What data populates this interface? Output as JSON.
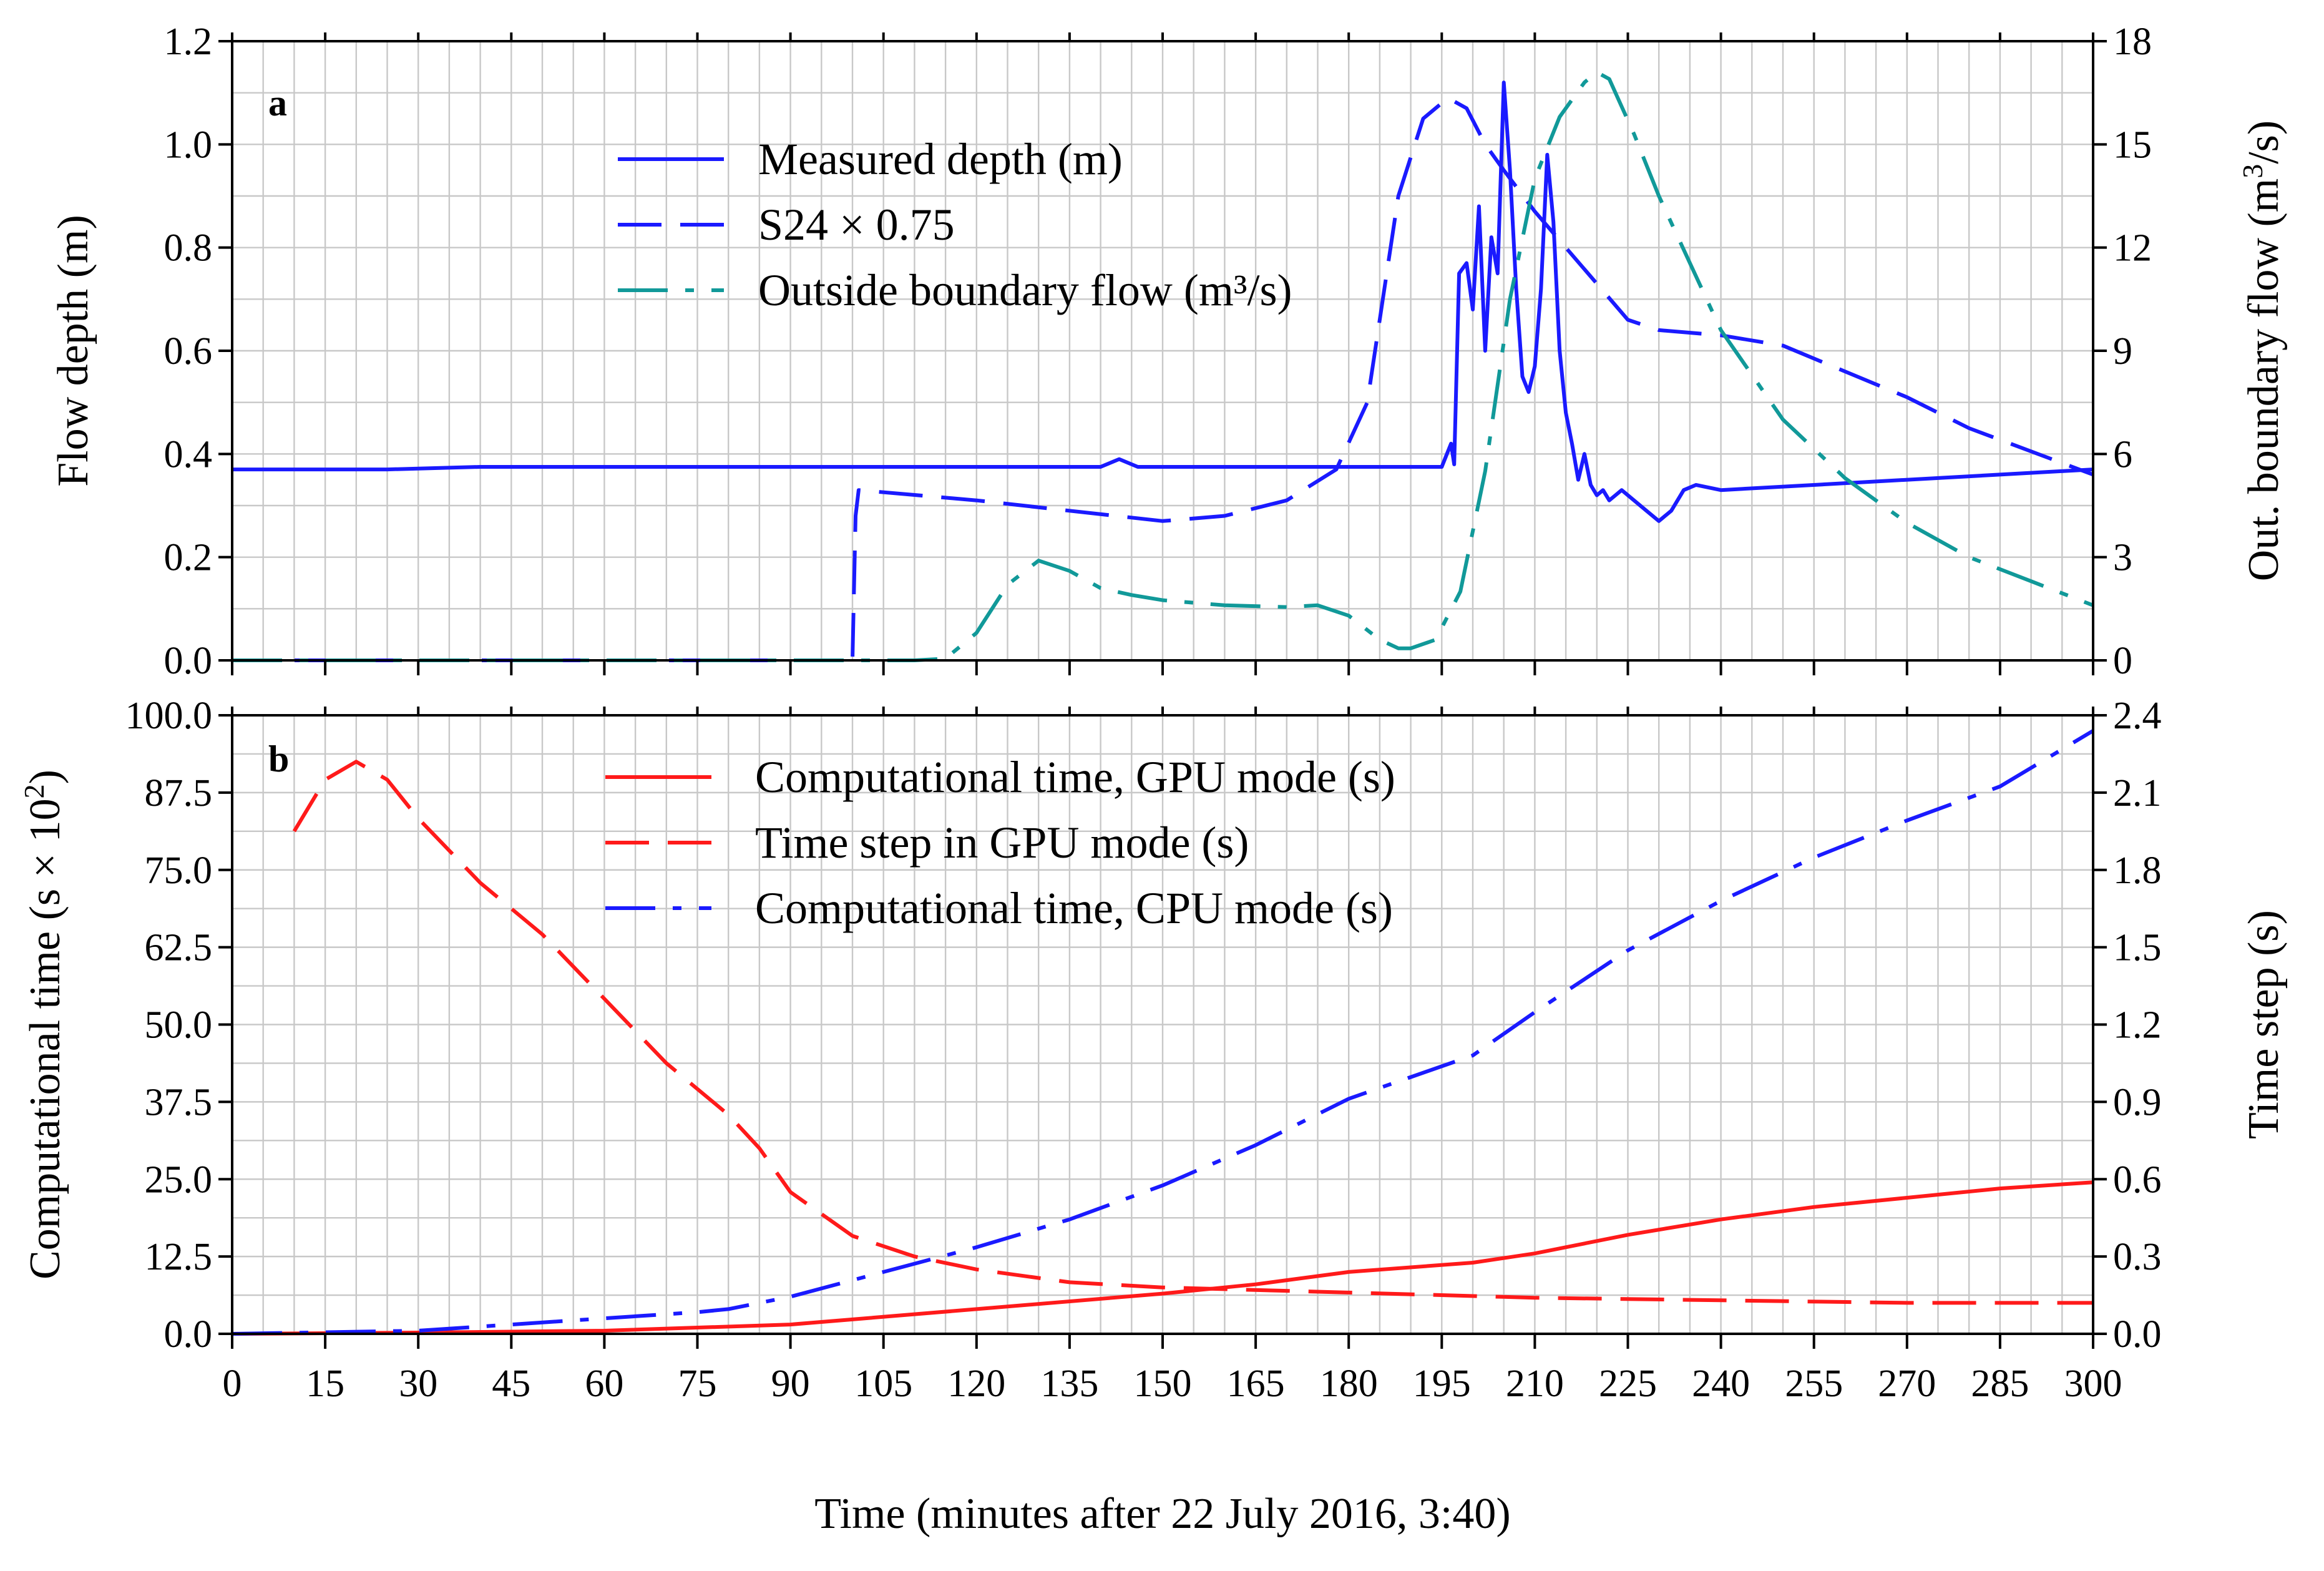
{
  "chart_data": {
    "shared_x": {
      "label": "Time (minutes after 22 July 2016, 3:40)",
      "range": [
        0,
        300
      ],
      "ticks": [
        0,
        15,
        30,
        45,
        60,
        75,
        90,
        105,
        120,
        135,
        150,
        165,
        180,
        195,
        210,
        225,
        240,
        255,
        270,
        285,
        300
      ]
    },
    "panels": [
      {
        "id": "a",
        "panel_label": "a",
        "type": "line",
        "y_left": {
          "label": "Flow depth (m)",
          "range": [
            0,
            1.2
          ],
          "ticks": [
            "0.0",
            "0.2",
            "0.4",
            "0.6",
            "0.8",
            "1.0",
            "1.2"
          ]
        },
        "y_right": {
          "label_main": "Out. boundary flow (m",
          "label_sup": "3",
          "label_tail": "/s)",
          "range": [
            0,
            18
          ],
          "ticks": [
            "0",
            "3",
            "6",
            "9",
            "12",
            "15",
            "18"
          ]
        },
        "series": [
          {
            "name": "Measured depth (m)",
            "axis": "left",
            "style": "solid",
            "color": "#1a1aff",
            "x": [
              0,
              25,
              40,
              100,
              140,
              143,
              146,
              195,
              196.5,
              197,
              197.8,
              199,
              200,
              201,
              202,
              203,
              204,
              205,
              206,
              207,
              208,
              209,
              210,
              211,
              212,
              213,
              214,
              215,
              216,
              217,
              218,
              219,
              220,
              221,
              222,
              223,
              224,
              228,
              230,
              232,
              234,
              236,
              240,
              300
            ],
            "y": [
              0.37,
              0.37,
              0.375,
              0.375,
              0.375,
              0.39,
              0.375,
              0.375,
              0.42,
              0.38,
              0.75,
              0.77,
              0.68,
              0.88,
              0.6,
              0.82,
              0.75,
              1.12,
              0.95,
              0.72,
              0.55,
              0.52,
              0.57,
              0.72,
              0.98,
              0.85,
              0.6,
              0.48,
              0.42,
              0.35,
              0.4,
              0.34,
              0.32,
              0.33,
              0.31,
              0.32,
              0.33,
              0.29,
              0.27,
              0.29,
              0.33,
              0.34,
              0.33,
              0.37
            ]
          },
          {
            "name": "S24 × 0.75",
            "axis": "left",
            "style": "dashed",
            "color": "#1a1aff",
            "x": [
              0,
              100,
              100.5,
              101,
              120,
              135,
              150,
              160,
              170,
              178,
              183,
              188,
              192,
              196,
              199,
              202,
              205,
              210,
              215,
              220,
              225,
              230,
              240,
              250,
              260,
              270,
              280,
              300
            ],
            "y": [
              0.0,
              0.0,
              0.28,
              0.33,
              0.31,
              0.29,
              0.27,
              0.28,
              0.31,
              0.37,
              0.5,
              0.9,
              1.05,
              1.09,
              1.07,
              1.0,
              0.95,
              0.87,
              0.8,
              0.73,
              0.66,
              0.64,
              0.63,
              0.61,
              0.56,
              0.51,
              0.45,
              0.36
            ]
          },
          {
            "name": "Outside boundary flow (m³/s)",
            "axis": "right",
            "style": "dashdot",
            "color": "#119999",
            "x": [
              0,
              110,
              115,
              120,
              125,
              130,
              135,
              140,
              145,
              150,
              160,
              170,
              175,
              180,
              185,
              188,
              190,
              194,
              198,
              202,
              206,
              210,
              214,
              218,
              220,
              222,
              226,
              230,
              240,
              250,
              260,
              270,
              280,
              290,
              300
            ],
            "y": [
              0,
              0,
              0.05,
              0.8,
              2.2,
              2.9,
              2.6,
              2.1,
              1.9,
              1.75,
              1.6,
              1.55,
              1.6,
              1.3,
              0.6,
              0.35,
              0.35,
              0.6,
              2.0,
              5.5,
              10.5,
              14.0,
              15.8,
              16.8,
              17.1,
              16.9,
              15.3,
              13.5,
              9.6,
              7.0,
              5.3,
              4.0,
              3.0,
              2.3,
              1.6
            ]
          }
        ]
      },
      {
        "id": "b",
        "panel_label": "b",
        "type": "line",
        "y_left": {
          "label_main": "Computational time (s × 10",
          "label_sup": "2",
          "label_tail": ")",
          "range": [
            0,
            100
          ],
          "ticks": [
            "0.0",
            "12.5",
            "25.0",
            "37.5",
            "50.0",
            "62.5",
            "75.0",
            "87.5",
            "100.0"
          ]
        },
        "y_right": {
          "label": "Time step (s)",
          "range": [
            0,
            2.4
          ],
          "ticks": [
            "0.0",
            "0.3",
            "0.6",
            "0.9",
            "1.2",
            "1.5",
            "1.8",
            "2.1",
            "2.4"
          ]
        },
        "series": [
          {
            "name": "Computational time, GPU mode (s)",
            "axis": "left",
            "style": "solid",
            "color": "#ff1a1a",
            "x": [
              0,
              30,
              60,
              90,
              120,
              150,
              165,
              180,
              200,
              210,
              225,
              240,
              255,
              270,
              285,
              300
            ],
            "y": [
              0,
              0.2,
              0.5,
              1.5,
              4,
              6.5,
              8,
              10,
              11.5,
              13,
              16,
              18.5,
              20.5,
              22,
              23.5,
              24.5
            ]
          },
          {
            "name": "Time step in GPU mode (s)",
            "axis": "right",
            "style": "dashed",
            "color": "#ff1a1a",
            "x": [
              10,
              15,
              20,
              25,
              30,
              40,
              50,
              60,
              70,
              80,
              85,
              90,
              100,
              110,
              120,
              135,
              150,
              180,
              210,
              240,
              270,
              300
            ],
            "y": [
              1.95,
              2.15,
              2.22,
              2.15,
              2.0,
              1.75,
              1.55,
              1.3,
              1.05,
              0.85,
              0.72,
              0.55,
              0.38,
              0.3,
              0.25,
              0.2,
              0.18,
              0.16,
              0.14,
              0.13,
              0.12,
              0.12
            ]
          },
          {
            "name": "Computational time, CPU mode (s)",
            "axis": "left",
            "style": "dashdot",
            "color": "#1a1aff",
            "x": [
              0,
              30,
              45,
              60,
              75,
              80,
              90,
              105,
              120,
              135,
              150,
              165,
              180,
              200,
              210,
              225,
              240,
              255,
              270,
              285,
              300
            ],
            "y": [
              0,
              0.5,
              1.5,
              2.5,
              3.5,
              4,
              6,
              10,
              14,
              18.5,
              24,
              30.5,
              38,
              45,
              52,
              62,
              70,
              77,
              83,
              88.5,
              97.5
            ]
          }
        ]
      }
    ]
  }
}
